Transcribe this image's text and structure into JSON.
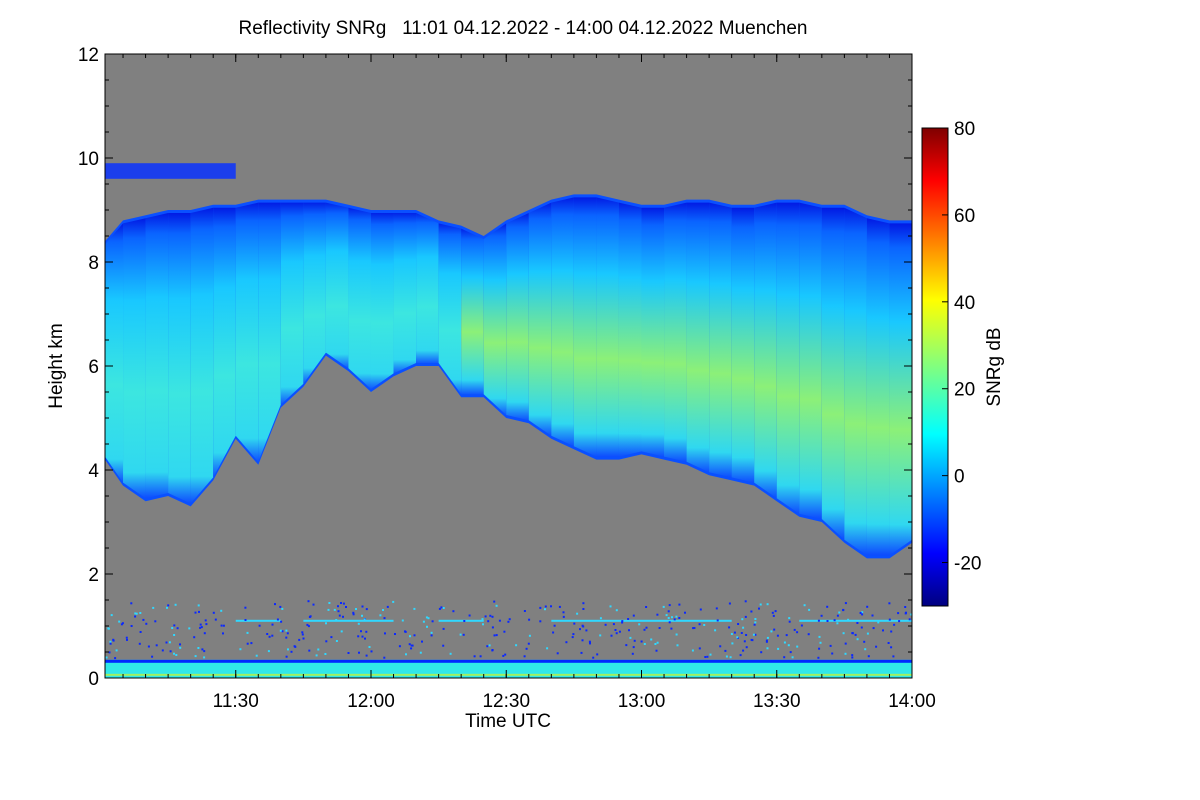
{
  "chart_data": {
    "type": "heatmap",
    "title": "Reflectivity SNRg   11:01 04.12.2022 - 14:00 04.12.2022 Muenchen",
    "xlabel": "Time UTC",
    "ylabel": "Height km",
    "x_range_minutes": [
      661,
      840
    ],
    "x_ticks": [
      {
        "label": "11:30",
        "minute": 690
      },
      {
        "label": "12:00",
        "minute": 720
      },
      {
        "label": "12:30",
        "minute": 750
      },
      {
        "label": "13:00",
        "minute": 780
      },
      {
        "label": "13:30",
        "minute": 810
      },
      {
        "label": "14:00",
        "minute": 840
      }
    ],
    "ylim": [
      0,
      12
    ],
    "y_ticks": [
      0,
      2,
      4,
      6,
      8,
      10,
      12
    ],
    "no_data_color": "#808080",
    "colorbar": {
      "label": "SNRg dB",
      "range": [
        -30,
        80
      ],
      "ticks": [
        -20,
        0,
        20,
        40,
        60,
        80
      ],
      "colormap": "jet"
    },
    "cloud_layer": {
      "description_fields": [
        "minute",
        "top_km",
        "base_km"
      ],
      "profile": [
        [
          661,
          8.4,
          4.2
        ],
        [
          665,
          8.8,
          3.7
        ],
        [
          670,
          8.9,
          3.4
        ],
        [
          675,
          9.0,
          3.5
        ],
        [
          680,
          9.0,
          3.3
        ],
        [
          685,
          9.1,
          3.8
        ],
        [
          690,
          9.1,
          4.6
        ],
        [
          695,
          9.2,
          4.1
        ],
        [
          700,
          9.2,
          5.2
        ],
        [
          705,
          9.2,
          5.6
        ],
        [
          710,
          9.2,
          6.2
        ],
        [
          715,
          9.1,
          5.9
        ],
        [
          720,
          9.0,
          5.5
        ],
        [
          725,
          9.0,
          5.8
        ],
        [
          730,
          9.0,
          6.0
        ],
        [
          735,
          8.8,
          6.0
        ],
        [
          740,
          8.7,
          5.4
        ],
        [
          745,
          8.5,
          5.4
        ],
        [
          750,
          8.8,
          5.0
        ],
        [
          755,
          9.0,
          4.9
        ],
        [
          760,
          9.2,
          4.6
        ],
        [
          765,
          9.3,
          4.4
        ],
        [
          770,
          9.3,
          4.2
        ],
        [
          775,
          9.2,
          4.2
        ],
        [
          780,
          9.1,
          4.3
        ],
        [
          785,
          9.1,
          4.2
        ],
        [
          790,
          9.2,
          4.1
        ],
        [
          795,
          9.2,
          3.9
        ],
        [
          800,
          9.1,
          3.8
        ],
        [
          805,
          9.1,
          3.7
        ],
        [
          810,
          9.2,
          3.4
        ],
        [
          815,
          9.2,
          3.1
        ],
        [
          820,
          9.1,
          3.0
        ],
        [
          825,
          9.1,
          2.6
        ],
        [
          830,
          8.9,
          2.3
        ],
        [
          835,
          8.8,
          2.3
        ],
        [
          840,
          8.8,
          2.6
        ]
      ],
      "upper_thin_layer": {
        "minute_range": [
          661,
          690
        ],
        "height_km": [
          9.6,
          9.9
        ]
      },
      "peak_snr_db": 35
    },
    "surface_clutter": {
      "height_km": [
        0.0,
        0.35
      ],
      "snr_db": 10
    },
    "clutter_line": {
      "height_km": 1.1,
      "snr_db": 8
    }
  }
}
